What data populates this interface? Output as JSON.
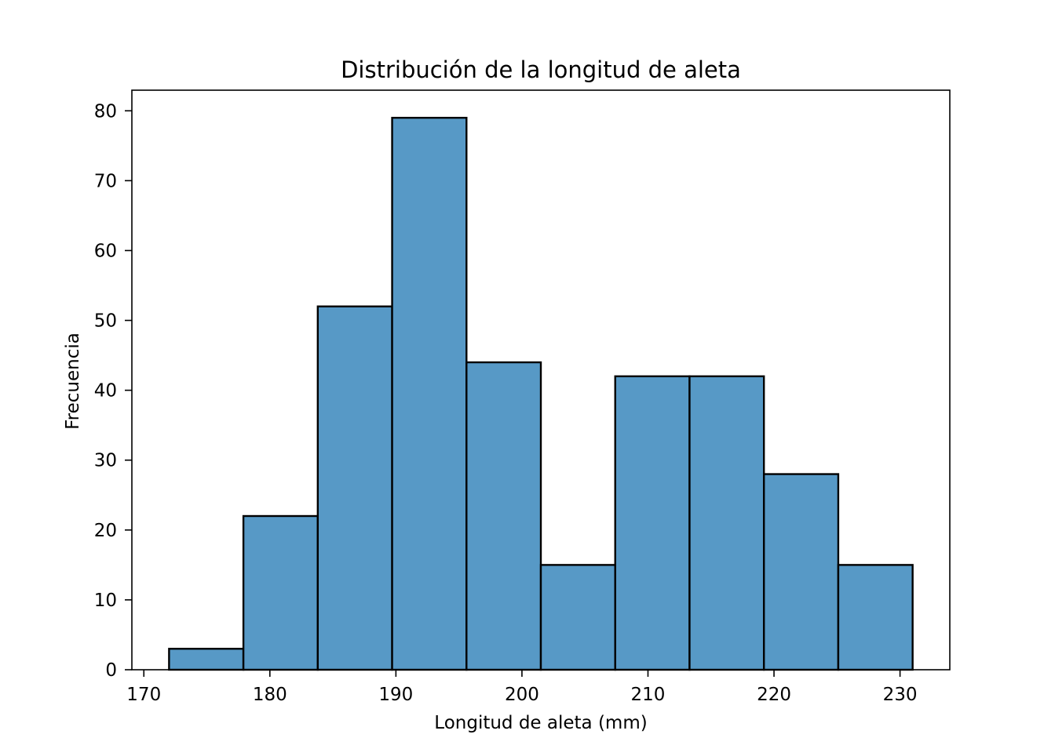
{
  "chart_data": {
    "type": "bar",
    "title": "Distribución de la longitud de aleta",
    "xlabel": "Longitud de aleta (mm)",
    "ylabel": "Frecuencia",
    "bin_edges": [
      172.0,
      177.9,
      183.8,
      189.7,
      195.6,
      201.5,
      207.4,
      213.3,
      219.2,
      225.1,
      231.0
    ],
    "values": [
      3,
      22,
      52,
      79,
      44,
      15,
      42,
      42,
      28,
      15
    ],
    "xlim": [
      169.05,
      233.95
    ],
    "ylim": [
      0,
      82.95
    ],
    "xticks": [
      170,
      180,
      190,
      200,
      210,
      220,
      230
    ],
    "yticks": [
      0,
      10,
      20,
      30,
      40,
      50,
      60,
      70,
      80
    ],
    "grid": false,
    "bar_color": "#5799c6",
    "edge_color": "#000000"
  }
}
